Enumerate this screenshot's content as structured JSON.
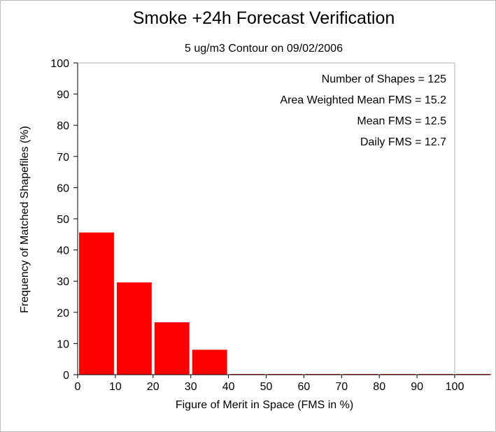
{
  "chart_data": {
    "type": "bar",
    "title": "Smoke +24h Forecast Verification",
    "subtitle": "5 ug/m3 Contour on 09/02/2006",
    "xlabel": "Figure of Merit in Space (FMS in %)",
    "ylabel": "Frequency of Matched Shapefiles (%)",
    "xlim": [
      0,
      110
    ],
    "ylim": [
      0,
      100
    ],
    "x_ticks": [
      0,
      10,
      20,
      30,
      40,
      50,
      60,
      70,
      80,
      90,
      100
    ],
    "y_ticks": [
      0,
      10,
      20,
      30,
      40,
      50,
      60,
      70,
      80,
      90,
      100
    ],
    "bins": [
      {
        "x0": 0,
        "x1": 10,
        "value": 45.6
      },
      {
        "x0": 10,
        "x1": 20,
        "value": 29.6
      },
      {
        "x0": 20,
        "x1": 30,
        "value": 16.8
      },
      {
        "x0": 30,
        "x1": 40,
        "value": 8.0
      },
      {
        "x0": 40,
        "x1": 50,
        "value": 0
      },
      {
        "x0": 50,
        "x1": 60,
        "value": 0
      },
      {
        "x0": 60,
        "x1": 70,
        "value": 0
      },
      {
        "x0": 70,
        "x1": 80,
        "value": 0
      },
      {
        "x0": 80,
        "x1": 90,
        "value": 0
      },
      {
        "x0": 90,
        "x1": 100,
        "value": 0
      },
      {
        "x0": 100,
        "x1": 110,
        "value": 0
      }
    ],
    "bar_color": "#ff0000",
    "stats": [
      "Number of Shapes = 125",
      "Area Weighted Mean FMS = 15.2",
      "Mean FMS = 12.5",
      "Daily FMS = 12.7"
    ],
    "grid": false,
    "legend": "none"
  }
}
